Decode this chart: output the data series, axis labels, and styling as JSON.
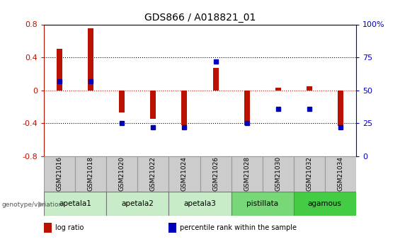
{
  "title": "GDS866 / A018821_01",
  "samples": [
    "GSM21016",
    "GSM21018",
    "GSM21020",
    "GSM21022",
    "GSM21024",
    "GSM21026",
    "GSM21028",
    "GSM21030",
    "GSM21032",
    "GSM21034"
  ],
  "log_ratio": [
    0.5,
    0.75,
    -0.27,
    -0.35,
    -0.42,
    0.27,
    -0.42,
    0.03,
    0.05,
    -0.43
  ],
  "percentile_rank": [
    57,
    57,
    25,
    22,
    22,
    72,
    25,
    36,
    36,
    22
  ],
  "groups": [
    {
      "label": "apetala1",
      "samples": [
        "GSM21016",
        "GSM21018"
      ],
      "color": "#c8ecc8"
    },
    {
      "label": "apetala2",
      "samples": [
        "GSM21020",
        "GSM21022"
      ],
      "color": "#c8ecc8"
    },
    {
      "label": "apetala3",
      "samples": [
        "GSM21024",
        "GSM21026"
      ],
      "color": "#c8ecc8"
    },
    {
      "label": "pistillata",
      "samples": [
        "GSM21028",
        "GSM21030"
      ],
      "color": "#78d878"
    },
    {
      "label": "agamous",
      "samples": [
        "GSM21032",
        "GSM21034"
      ],
      "color": "#44cc44"
    }
  ],
  "ylim_left": [
    -0.8,
    0.8
  ],
  "ylim_right": [
    0,
    100
  ],
  "yticks_left": [
    -0.8,
    -0.4,
    0.0,
    0.4,
    0.8
  ],
  "yticks_right": [
    0,
    25,
    50,
    75,
    100
  ],
  "ytick_labels_left": [
    "-0.8",
    "-0.4",
    "0",
    "0.4",
    "0.8"
  ],
  "ytick_labels_right": [
    "0",
    "25",
    "50",
    "75",
    "100%"
  ],
  "bar_color": "#bb1100",
  "dot_color": "#0000bb",
  "bar_width": 0.18,
  "legend_items": [
    "log ratio",
    "percentile rank within the sample"
  ],
  "legend_colors": [
    "#bb1100",
    "#0000bb"
  ],
  "genotype_label": "genotype/variation",
  "background_color": "#ffffff",
  "plot_bg": "#ffffff",
  "sample_box_color": "#cccccc",
  "sample_box_edge": "#999999"
}
